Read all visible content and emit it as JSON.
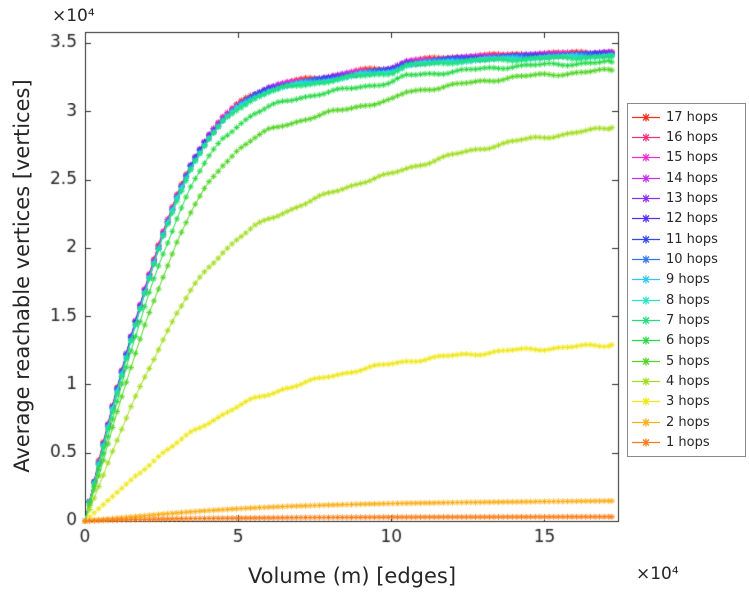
{
  "figure": {
    "xlabel": "Volume (m) [edges]",
    "ylabel": "Average reachable vertices [vertices]",
    "x_exponent_label": "×10⁴",
    "y_exponent_label": "×10⁴"
  },
  "chart_data": {
    "type": "line",
    "title": "",
    "xlabel": "Volume (m) [edges]",
    "ylabel": "Average reachable vertices [vertices]",
    "marker": "*",
    "grid": false,
    "legend_position": "right-outside",
    "axis_exponent": "×10⁴",
    "units_note": "x and y values are in units of 1e4 (axis multiplier ×10⁴)",
    "xlim": [
      0,
      17.4
    ],
    "ylim": [
      0,
      3.58
    ],
    "xticks": [
      0,
      5,
      10,
      15
    ],
    "xtick_labels": [
      "0",
      "5",
      "10",
      "15"
    ],
    "yticks": [
      0,
      0.5,
      1,
      1.5,
      2,
      2.5,
      3,
      3.5
    ],
    "ytick_labels": [
      "0",
      "0.5",
      "1",
      "1.5",
      "2",
      "2.5",
      "3",
      "3.5"
    ],
    "x": [
      0,
      0.5,
      1,
      1.5,
      2,
      2.5,
      3,
      3.5,
      4,
      4.5,
      5,
      5.5,
      6,
      6.5,
      7,
      8,
      9,
      10,
      10.5,
      12,
      14,
      17.2
    ],
    "series": [
      {
        "name": "17 hops",
        "color": "#f2301b",
        "y": [
          0,
          0.486,
          0.936,
          1.356,
          1.736,
          2.086,
          2.386,
          2.636,
          2.816,
          2.956,
          3.056,
          3.126,
          3.176,
          3.206,
          3.226,
          3.256,
          3.296,
          3.316,
          3.366,
          3.396,
          3.416,
          3.436
        ]
      },
      {
        "name": "16 hops",
        "color": "#f3307e",
        "y": [
          0,
          0.483,
          0.933,
          1.353,
          1.733,
          2.083,
          2.383,
          2.633,
          2.813,
          2.953,
          3.053,
          3.123,
          3.173,
          3.203,
          3.223,
          3.253,
          3.293,
          3.313,
          3.363,
          3.393,
          3.413,
          3.433
        ]
      },
      {
        "name": "15 hops",
        "color": "#ef2fd0",
        "y": [
          0,
          0.48,
          0.93,
          1.35,
          1.73,
          2.08,
          2.38,
          2.63,
          2.81,
          2.95,
          3.05,
          3.12,
          3.17,
          3.2,
          3.22,
          3.25,
          3.29,
          3.31,
          3.36,
          3.39,
          3.41,
          3.43
        ]
      },
      {
        "name": "14 hops",
        "color": "#c52ff2",
        "y": [
          0,
          0.477,
          0.927,
          1.347,
          1.727,
          2.077,
          2.377,
          2.627,
          2.807,
          2.947,
          3.047,
          3.117,
          3.167,
          3.197,
          3.217,
          3.247,
          3.287,
          3.307,
          3.357,
          3.387,
          3.407,
          3.427
        ]
      },
      {
        "name": "13 hops",
        "color": "#8d2ff2",
        "y": [
          0,
          0.474,
          0.924,
          1.344,
          1.724,
          2.074,
          2.374,
          2.624,
          2.804,
          2.944,
          3.044,
          3.114,
          3.164,
          3.194,
          3.214,
          3.244,
          3.284,
          3.304,
          3.354,
          3.384,
          3.404,
          3.424
        ]
      },
      {
        "name": "12 hops",
        "color": "#5a2ff2",
        "y": [
          0,
          0.471,
          0.921,
          1.341,
          1.721,
          2.071,
          2.371,
          2.621,
          2.801,
          2.941,
          3.041,
          3.111,
          3.161,
          3.191,
          3.211,
          3.241,
          3.281,
          3.301,
          3.351,
          3.381,
          3.401,
          3.421
        ]
      },
      {
        "name": "11 hops",
        "color": "#3347f0",
        "y": [
          0,
          0.468,
          0.918,
          1.338,
          1.718,
          2.068,
          2.368,
          2.618,
          2.798,
          2.938,
          3.038,
          3.108,
          3.158,
          3.188,
          3.208,
          3.238,
          3.278,
          3.298,
          3.348,
          3.378,
          3.398,
          3.418
        ]
      },
      {
        "name": "10 hops",
        "color": "#2f78f0",
        "y": [
          0,
          0.465,
          0.915,
          1.335,
          1.715,
          2.065,
          2.365,
          2.615,
          2.795,
          2.935,
          3.035,
          3.105,
          3.155,
          3.185,
          3.205,
          3.235,
          3.275,
          3.295,
          3.345,
          3.375,
          3.395,
          3.415
        ]
      },
      {
        "name": "9 hops",
        "color": "#2fc8f0",
        "y": [
          0,
          0.46,
          0.91,
          1.33,
          1.71,
          2.06,
          2.36,
          2.61,
          2.79,
          2.93,
          3.03,
          3.1,
          3.15,
          3.18,
          3.2,
          3.23,
          3.27,
          3.29,
          3.34,
          3.37,
          3.39,
          3.41
        ]
      },
      {
        "name": "8 hops",
        "color": "#27e8c4",
        "y": [
          0,
          0.455,
          0.905,
          1.325,
          1.705,
          2.055,
          2.355,
          2.605,
          2.785,
          2.925,
          3.025,
          3.095,
          3.145,
          3.175,
          3.195,
          3.225,
          3.265,
          3.285,
          3.335,
          3.365,
          3.385,
          3.405
        ]
      },
      {
        "name": "7 hops",
        "color": "#1fe07a",
        "y": [
          0,
          0.45,
          0.9,
          1.32,
          1.7,
          2.05,
          2.35,
          2.6,
          2.78,
          2.92,
          3.02,
          3.09,
          3.14,
          3.17,
          3.19,
          3.22,
          3.26,
          3.28,
          3.33,
          3.36,
          3.38,
          3.4
        ]
      },
      {
        "name": "6 hops",
        "color": "#28d948",
        "y": [
          0,
          0.42,
          0.84,
          1.24,
          1.6,
          1.93,
          2.22,
          2.47,
          2.65,
          2.8,
          2.9,
          2.98,
          3.03,
          3.07,
          3.1,
          3.14,
          3.18,
          3.21,
          3.26,
          3.29,
          3.33,
          3.36
        ]
      },
      {
        "name": "5 hops",
        "color": "#52d426",
        "y": [
          0,
          0.38,
          0.76,
          1.12,
          1.46,
          1.77,
          2.04,
          2.28,
          2.46,
          2.61,
          2.72,
          2.8,
          2.86,
          2.9,
          2.93,
          2.99,
          3.04,
          3.08,
          3.14,
          3.19,
          3.25,
          3.3
        ]
      },
      {
        "name": "4 hops",
        "color": "#a2dd20",
        "y": [
          0,
          0.28,
          0.56,
          0.83,
          1.08,
          1.31,
          1.52,
          1.7,
          1.85,
          1.97,
          2.07,
          2.15,
          2.21,
          2.26,
          2.31,
          2.4,
          2.48,
          2.54,
          2.58,
          2.68,
          2.78,
          2.88
        ]
      },
      {
        "name": "3 hops",
        "color": "#efe719",
        "y": [
          0,
          0.1,
          0.2,
          0.3,
          0.4,
          0.49,
          0.57,
          0.65,
          0.72,
          0.78,
          0.84,
          0.89,
          0.93,
          0.97,
          1.0,
          1.06,
          1.11,
          1.15,
          1.17,
          1.21,
          1.25,
          1.29
        ]
      },
      {
        "name": "2 hops",
        "color": "#fcae17",
        "y": [
          0,
          0.01,
          0.02,
          0.03,
          0.04,
          0.05,
          0.059,
          0.068,
          0.076,
          0.083,
          0.09,
          0.096,
          0.101,
          0.106,
          0.11,
          0.117,
          0.123,
          0.128,
          0.13,
          0.135,
          0.14,
          0.147
        ]
      },
      {
        "name": "1 hops",
        "color": "#f97c16",
        "y": [
          0,
          0.004,
          0.007,
          0.01,
          0.012,
          0.014,
          0.016,
          0.018,
          0.019,
          0.02,
          0.021,
          0.022,
          0.023,
          0.024,
          0.025,
          0.026,
          0.027,
          0.028,
          0.028,
          0.029,
          0.03,
          0.031
        ]
      }
    ]
  }
}
